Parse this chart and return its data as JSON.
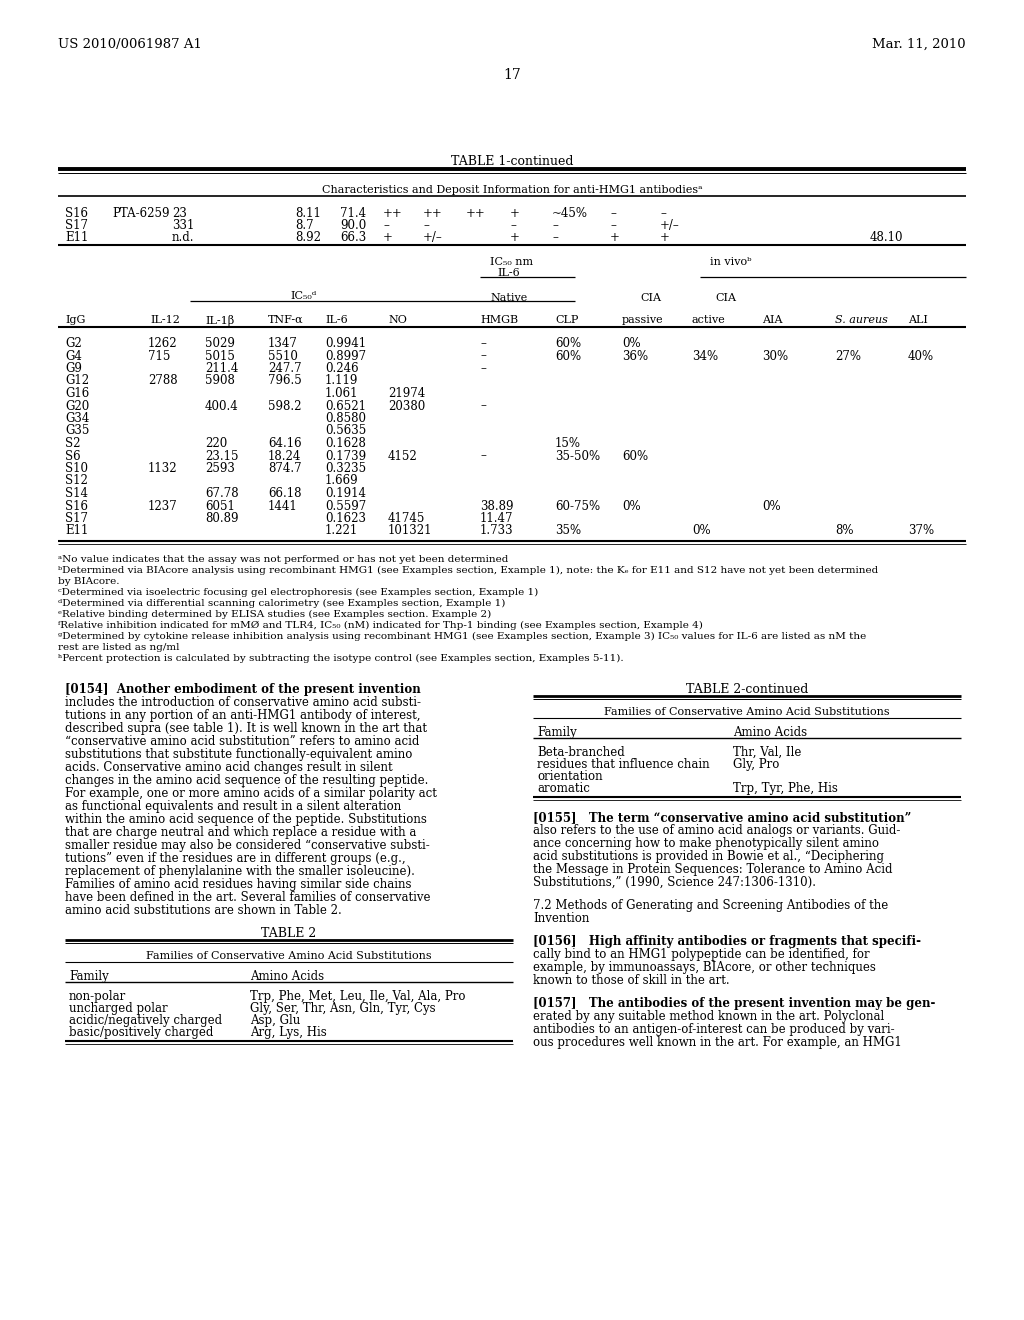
{
  "bg_color": "#ffffff",
  "header_left": "US 2010/0061987 A1",
  "header_right": "Mar. 11, 2010",
  "page_number": "17",
  "table1_title": "TABLE 1-continued",
  "table1_subtitle": "Characteristics and Deposit Information for anti-HMG1 antibodiesᵃ",
  "top_row_data": [
    [
      "S16",
      "PTA-6259",
      "23",
      "",
      "8.11",
      "71.4",
      "++",
      "++",
      "++",
      "+",
      "~45%",
      "–",
      "–",
      ""
    ],
    [
      "S17",
      "",
      "331",
      "",
      "8.7",
      "90.0",
      "–",
      "–",
      "",
      "–",
      "–",
      "–",
      "+/–",
      ""
    ],
    [
      "E11",
      "",
      "n.d.",
      "",
      "8.92",
      "66.3",
      "+",
      "+/–",
      "",
      "+",
      "–",
      "+",
      "+",
      "48.10"
    ]
  ],
  "data_rows": [
    [
      "G2",
      "1262",
      "5029",
      "1347",
      "0.9941",
      "",
      "–",
      "60%",
      "0%",
      "",
      "",
      "",
      ""
    ],
    [
      "G4",
      "715",
      "5015",
      "5510",
      "0.8997",
      "",
      "–",
      "60%",
      "36%",
      "34%",
      "30%",
      "27%",
      "40%"
    ],
    [
      "G9",
      "",
      "211.4",
      "247.7",
      "0.246",
      "",
      "–",
      "",
      "",
      "",
      "",
      "",
      ""
    ],
    [
      "G12",
      "2788",
      "5908",
      "796.5",
      "1.119",
      "",
      "",
      "",
      "",
      "",
      "",
      "",
      ""
    ],
    [
      "G16",
      "",
      "",
      "",
      "1.061",
      "21974",
      "",
      "",
      "",
      "",
      "",
      "",
      ""
    ],
    [
      "G20",
      "",
      "400.4",
      "598.2",
      "0.6521",
      "20380",
      "–",
      "",
      "",
      "",
      "",
      "",
      ""
    ],
    [
      "G34",
      "",
      "",
      "",
      "0.8580",
      "",
      "",
      "",
      "",
      "",
      "",
      "",
      ""
    ],
    [
      "G35",
      "",
      "",
      "",
      "0.5635",
      "",
      "",
      "",
      "",
      "",
      "",
      "",
      ""
    ],
    [
      "S2",
      "",
      "220",
      "64.16",
      "0.1628",
      "",
      "",
      "15%",
      "",
      "",
      "",
      "",
      ""
    ],
    [
      "S6",
      "",
      "23.15",
      "18.24",
      "0.1739",
      "4152",
      "–",
      "35-50%",
      "60%",
      "",
      "",
      "",
      ""
    ],
    [
      "S10",
      "1132",
      "2593",
      "874.7",
      "0.3235",
      "",
      "",
      "",
      "",
      "",
      "",
      "",
      ""
    ],
    [
      "S12",
      "",
      "",
      "",
      "1.669",
      "",
      "",
      "",
      "",
      "",
      "",
      "",
      ""
    ],
    [
      "S14",
      "",
      "67.78",
      "66.18",
      "0.1914",
      "",
      "",
      "",
      "",
      "",
      "",
      "",
      ""
    ],
    [
      "S16",
      "1237",
      "6051",
      "1441",
      "0.5597",
      "",
      "38.89",
      "60-75%",
      "0%",
      "",
      "0%",
      "",
      ""
    ],
    [
      "S17",
      "",
      "80.89",
      "",
      "0.1623",
      "41745",
      "11.47",
      "",
      "",
      "",
      "",
      "",
      ""
    ],
    [
      "E11",
      "",
      "",
      "",
      "1.221",
      "101321",
      "1.733",
      "35%",
      "",
      "0%",
      "",
      "8%",
      "37%"
    ]
  ],
  "footnotes": [
    "ᵃNo value indicates that the assay was not performed or has not yet been determined",
    "ᵇDetermined via BIAcore analysis using recombinant HMG1 (see Examples section, Example 1), note: the Kₑ for E11 and S12 have not yet been determined",
    "by BIAcore.",
    "ᶜDetermined via isoelectric focusing gel electrophoresis (see Examples section, Example 1)",
    "ᵈDetermined via differential scanning calorimetry (see Examples section, Example 1)",
    "ᵉRelative binding determined by ELISA studies (see Examples section. Example 2)",
    "ᶠRelative inhibition indicated for mMØ and TLR4, IC₅₀ (nM) indicated for Thp-1 binding (see Examples section, Example 4)",
    "ᵍDetermined by cytokine release inhibition analysis using recombinant HMG1 (see Examples section, Example 3) IC₅₀ values for IL-6 are listed as nM the",
    "rest are listed as ng/ml",
    "ʰPercent protection is calculated by subtracting the isotype control (see Examples section, Examples 5-11)."
  ],
  "body_left_lines": [
    "[0154]  Another embodiment of the present invention",
    "includes the introduction of conservative amino acid substi-",
    "tutions in any portion of an anti-HMG1 antibody of interest,",
    "described supra (see table 1). It is well known in the art that",
    "“conservative amino acid substitution” refers to amino acid",
    "substitutions that substitute functionally-equivalent amino",
    "acids. Conservative amino acid changes result in silent",
    "changes in the amino acid sequence of the resulting peptide.",
    "For example, one or more amino acids of a similar polarity act",
    "as functional equivalents and result in a silent alteration",
    "within the amino acid sequence of the peptide. Substitutions",
    "that are charge neutral and which replace a residue with a",
    "smaller residue may also be considered “conservative substi-",
    "tutions” even if the residues are in different groups (e.g.,",
    "replacement of phenylalanine with the smaller isoleucine).",
    "Families of amino acid residues having similar side chains",
    "have been defined in the art. Several families of conservative",
    "amino acid substitutions are shown in Table 2."
  ],
  "table2_title": "TABLE 2",
  "table2_subtitle": "Families of Conservative Amino Acid Substitutions",
  "table2_rows": [
    [
      "non-polar",
      "Trp, Phe, Met, Leu, Ile, Val, Ala, Pro"
    ],
    [
      "uncharged polar",
      "Gly, Ser, Thr, Asn, Gln, Tyr, Cys"
    ],
    [
      "acidic/negatively charged",
      "Asp, Glu"
    ],
    [
      "basic/positively charged",
      "Arg, Lys, His"
    ]
  ],
  "table2cont_title": "TABLE 2-continued",
  "table2cont_subtitle": "Families of Conservative Amino Acid Substitutions",
  "table2cont_rows_left": [
    "Beta-branched",
    "residues that influence chain",
    "orientation",
    "aromatic"
  ],
  "table2cont_rows_right": [
    "Thr, Val, Ile",
    "Gly, Pro",
    "",
    "Trp, Tyr, Phe, His"
  ],
  "body_right_lines": [
    "[0155]   The term “conservative amino acid substitution”",
    "also refers to the use of amino acid analogs or variants. Guid-",
    "ance concerning how to make phenotypically silent amino",
    "acid substitutions is provided in Bowie et al., “Deciphering",
    "the Message in Protein Sequences: Tolerance to Amino Acid",
    "Substitutions,” (1990, Science 247:1306-1310)."
  ],
  "section_heading_lines": [
    "7.2 Methods of Generating and Screening Antibodies of the",
    "Invention"
  ],
  "body_right_para2_lines": [
    "[0156]   High affinity antibodies or fragments that specifi-",
    "cally bind to an HMG1 polypeptide can be identified, for",
    "example, by immunoassays, BIAcore, or other techniques",
    "known to those of skill in the art."
  ],
  "body_right_para3_lines": [
    "[0157]   The antibodies of the present invention may be gen-",
    "erated by any suitable method known in the art. Polyclonal",
    "antibodies to an antigen-of-interest can be produced by vari-",
    "ous procedures well known in the art. For example, an HMG1"
  ]
}
